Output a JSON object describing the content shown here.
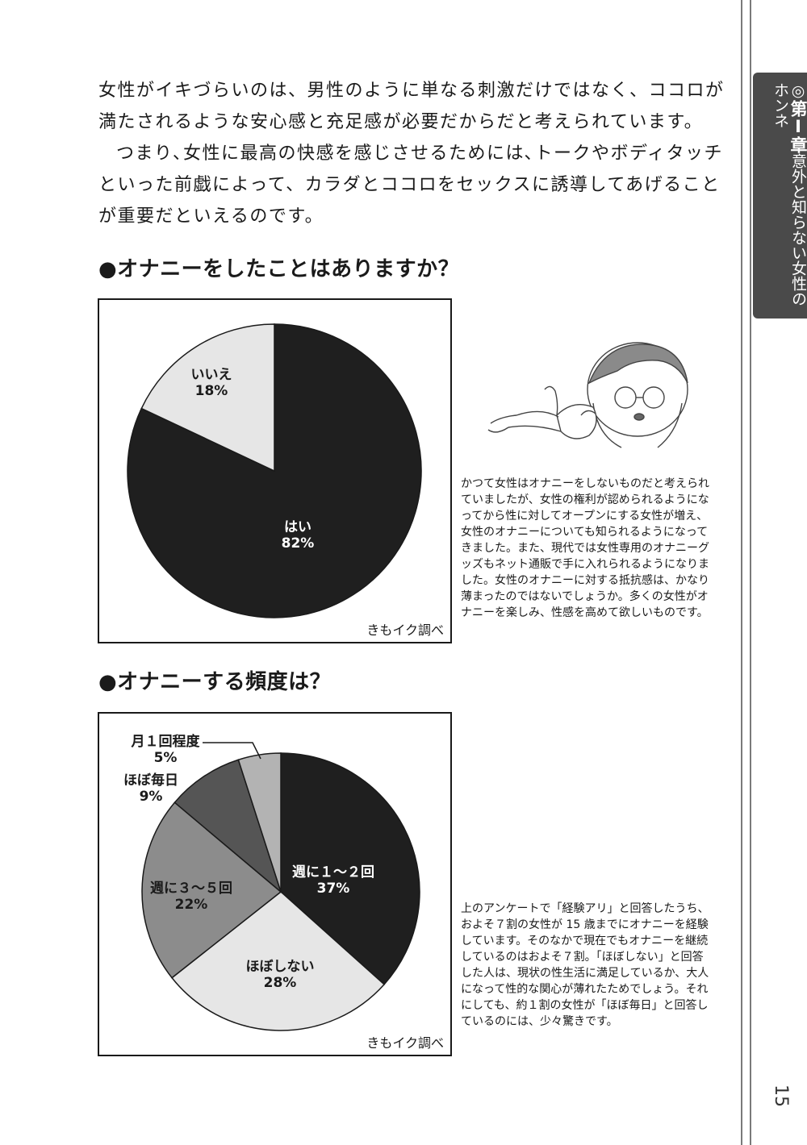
{
  "sidebar": {
    "mark": "◎",
    "chapter": "第Ⅰ章",
    "subtitle": "意外と知らない女性のホンネ"
  },
  "page_number": "15",
  "intro": {
    "p1": "女性がイキづらいのは、男性のように単なる刺激だけではなく、ココロが満たされるような安心感と充足感が必要だからだと考えられています。",
    "p2": "つまり､女性に最高の快感を感じさせるためには､トークやボディタッチといった前戯によって、カラダとココロをセックスに誘導してあげることが重要だといえるのです。"
  },
  "section1": {
    "heading": "●オナニーをしたことはありますか？",
    "source": "きもイク調べ",
    "sidebar_text": "かつて女性はオナニーをしないものだと考えられていましたが、女性の権利が認められるようになってから性に対してオープンにする女性が増え、女性のオナニーについても知られるようになってきました。また、現代では女性専用のオナニーグッズもネット通販で手に入れられるようになりました。女性のオナニーに対する抵抗感は、かなり薄まったのではないでしょうか。多くの女性がオナニーを楽しみ、性感を高めて欲しいものです。"
  },
  "section2": {
    "heading": "●オナニーする頻度は？",
    "source": "きもイク調べ",
    "sidebar_text": "上のアンケートで「経験アリ」と回答したうち、およそ７割の女性が 15 歳までにオナニーを経験しています。そのなかで現在でもオナニーを継続しているのはおよそ７割。「ほぼしない」と回答した人は、現状の性生活に満足しているか、大人になって性的な関心が薄れたためでしょう。それにしても、約１割の女性が「ほぼ毎日」と回答しているのには、少々驚きです。"
  },
  "chart_data": [
    {
      "type": "pie",
      "title": "",
      "slices": [
        {
          "label": "はい",
          "value": 82,
          "value_label": "82%",
          "color": "#1f1f1f",
          "text_color": "#ffffff"
        },
        {
          "label": "いいえ",
          "value": 18,
          "value_label": "18%",
          "color": "#e6e6e6",
          "text_color": "#1a1a1a"
        }
      ],
      "start": "12 o'clock",
      "direction": "clockwise"
    },
    {
      "type": "pie",
      "title": "",
      "slices": [
        {
          "label": "週に１～２回",
          "value": 37,
          "value_label": "37%",
          "color": "#1f1f1f",
          "text_color": "#ffffff"
        },
        {
          "label": "ほぼしない",
          "value": 28,
          "value_label": "28%",
          "color": "#e6e6e6",
          "text_color": "#1a1a1a"
        },
        {
          "label": "週に３～５回",
          "value": 22,
          "value_label": "22%",
          "color": "#8c8c8c",
          "text_color": "#1a1a1a"
        },
        {
          "label": "ほぼ毎日",
          "value": 9,
          "value_label": "9%",
          "color": "#555555",
          "text_color": "#1a1a1a"
        },
        {
          "label": "月１回程度",
          "value": 5,
          "value_label": "5%",
          "color": "#b3b3b3",
          "text_color": "#1a1a1a"
        }
      ],
      "start": "12 o'clock",
      "direction": "clockwise"
    }
  ]
}
